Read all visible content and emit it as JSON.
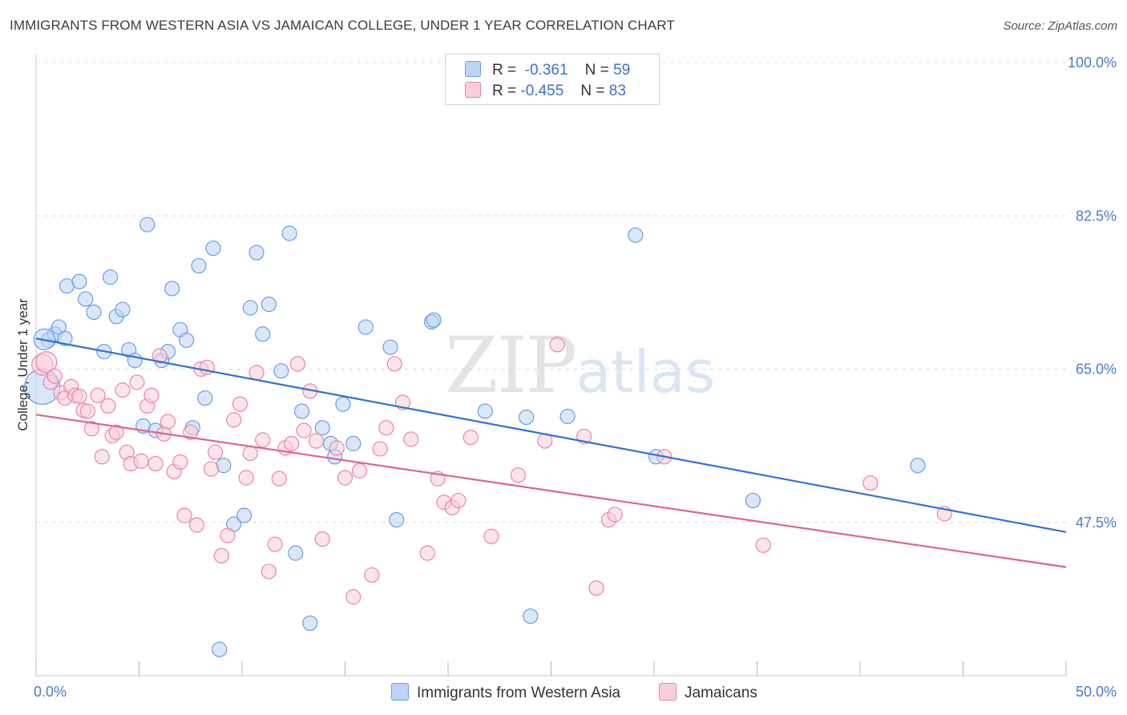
{
  "header": {
    "title": "IMMIGRANTS FROM WESTERN ASIA VS JAMAICAN COLLEGE, UNDER 1 YEAR CORRELATION CHART",
    "source": "Source: ZipAtlas.com"
  },
  "watermark": {
    "zip": "ZIP",
    "atlas": "atlas"
  },
  "legend": {
    "rows": [
      {
        "r_label": "R =",
        "r_value": "-0.361",
        "n_label": "N =",
        "n_value": "59",
        "color": "#a9c6f0",
        "border": "#6b9ee0"
      },
      {
        "r_label": "R =",
        "r_value": "-0.455",
        "n_label": "N =",
        "n_value": "83",
        "color": "#f7bfd1",
        "border": "#e886a6"
      }
    ]
  },
  "bottom_legend": {
    "items": [
      {
        "label": "Immigrants from Western Asia",
        "color": "#bcd4f5",
        "border": "#6b9ee0"
      },
      {
        "label": "Jamaicans",
        "color": "#f9cddd",
        "border": "#e886a6"
      }
    ]
  },
  "chart_data": {
    "type": "scatter",
    "title": "IMMIGRANTS FROM WESTERN ASIA VS JAMAICAN COLLEGE, UNDER 1 YEAR CORRELATION CHART",
    "xlabel": "",
    "ylabel": "College, Under 1 year",
    "xlim": [
      0,
      50
    ],
    "ylim": [
      30,
      100
    ],
    "x_tick_labels": [
      "0.0%",
      "50.0%"
    ],
    "y_ticks": [
      47.5,
      65.0,
      82.5,
      100.0
    ],
    "y_tick_labels": [
      "47.5%",
      "65.0%",
      "82.5%",
      "100.0%"
    ],
    "grid": true,
    "series": [
      {
        "name": "Immigrants from Western Asia",
        "color": "#6b9ee0",
        "fill": "#bcd4f5",
        "trend": {
          "x": [
            0,
            50
          ],
          "y": [
            68.5,
            46.4
          ],
          "color": "#2f72d6"
        },
        "points": [
          [
            0.3,
            63.0
          ],
          [
            0.6,
            68.3
          ],
          [
            0.9,
            69.0
          ],
          [
            1.1,
            69.8
          ],
          [
            1.4,
            68.5
          ],
          [
            1.5,
            74.5
          ],
          [
            2.1,
            75.0
          ],
          [
            2.4,
            73.0
          ],
          [
            2.8,
            71.5
          ],
          [
            3.3,
            67.0
          ],
          [
            3.6,
            75.5
          ],
          [
            3.9,
            71.0
          ],
          [
            4.2,
            71.8
          ],
          [
            4.5,
            67.2
          ],
          [
            4.8,
            66.0
          ],
          [
            5.2,
            58.5
          ],
          [
            5.4,
            81.5
          ],
          [
            5.8,
            58.0
          ],
          [
            6.1,
            66.0
          ],
          [
            6.4,
            67.0
          ],
          [
            6.6,
            74.2
          ],
          [
            7.0,
            69.5
          ],
          [
            7.3,
            68.3
          ],
          [
            7.6,
            58.3
          ],
          [
            7.9,
            76.8
          ],
          [
            8.2,
            61.7
          ],
          [
            8.6,
            78.8
          ],
          [
            8.9,
            33.0
          ],
          [
            9.1,
            54.0
          ],
          [
            9.6,
            47.3
          ],
          [
            10.1,
            48.3
          ],
          [
            10.4,
            72.0
          ],
          [
            10.7,
            78.3
          ],
          [
            11.0,
            69.0
          ],
          [
            11.3,
            72.4
          ],
          [
            11.9,
            64.8
          ],
          [
            12.3,
            80.5
          ],
          [
            12.6,
            44.0
          ],
          [
            12.9,
            60.2
          ],
          [
            13.3,
            36.0
          ],
          [
            13.9,
            58.3
          ],
          [
            14.3,
            56.5
          ],
          [
            14.5,
            55.0
          ],
          [
            14.9,
            61.0
          ],
          [
            15.4,
            56.5
          ],
          [
            16.0,
            69.8
          ],
          [
            17.2,
            67.5
          ],
          [
            17.5,
            47.8
          ],
          [
            19.2,
            70.4
          ],
          [
            19.3,
            70.6
          ],
          [
            21.8,
            60.2
          ],
          [
            23.8,
            59.5
          ],
          [
            24.0,
            36.8
          ],
          [
            25.8,
            59.6
          ],
          [
            29.1,
            80.3
          ],
          [
            30.1,
            55.0
          ],
          [
            34.8,
            50.0
          ],
          [
            42.8,
            54.0
          ],
          [
            0.4,
            68.4
          ]
        ]
      },
      {
        "name": "Jamaicans",
        "color": "#e886a6",
        "fill": "#f9cddd",
        "trend": {
          "x": [
            0,
            50
          ],
          "y": [
            59.8,
            42.4
          ],
          "color": "#e0648f"
        },
        "points": [
          [
            0.3,
            65.5
          ],
          [
            0.5,
            65.8
          ],
          [
            0.7,
            63.5
          ],
          [
            0.9,
            64.2
          ],
          [
            1.2,
            62.3
          ],
          [
            1.4,
            61.7
          ],
          [
            1.7,
            63.0
          ],
          [
            1.9,
            62.0
          ],
          [
            2.1,
            61.9
          ],
          [
            2.3,
            60.3
          ],
          [
            2.5,
            60.2
          ],
          [
            2.7,
            58.2
          ],
          [
            3.0,
            62.0
          ],
          [
            3.2,
            55.0
          ],
          [
            3.5,
            60.8
          ],
          [
            3.7,
            57.4
          ],
          [
            3.9,
            57.8
          ],
          [
            4.2,
            62.6
          ],
          [
            4.4,
            55.5
          ],
          [
            4.6,
            54.2
          ],
          [
            4.9,
            63.5
          ],
          [
            5.1,
            54.5
          ],
          [
            5.4,
            60.8
          ],
          [
            5.6,
            62.0
          ],
          [
            5.8,
            54.2
          ],
          [
            6.0,
            66.5
          ],
          [
            6.2,
            57.6
          ],
          [
            6.4,
            59.0
          ],
          [
            6.7,
            53.3
          ],
          [
            7.0,
            54.4
          ],
          [
            7.2,
            48.3
          ],
          [
            7.5,
            57.8
          ],
          [
            7.8,
            47.2
          ],
          [
            8.0,
            65.0
          ],
          [
            8.3,
            65.2
          ],
          [
            8.5,
            53.6
          ],
          [
            8.7,
            55.5
          ],
          [
            9.0,
            43.7
          ],
          [
            9.3,
            46.0
          ],
          [
            9.6,
            59.2
          ],
          [
            9.9,
            61.0
          ],
          [
            10.2,
            52.6
          ],
          [
            10.4,
            55.4
          ],
          [
            10.7,
            64.6
          ],
          [
            11.0,
            56.9
          ],
          [
            11.3,
            41.9
          ],
          [
            11.6,
            45.0
          ],
          [
            11.8,
            52.5
          ],
          [
            12.1,
            56.0
          ],
          [
            12.4,
            56.5
          ],
          [
            12.7,
            65.6
          ],
          [
            13.0,
            58.0
          ],
          [
            13.3,
            62.5
          ],
          [
            13.6,
            56.8
          ],
          [
            13.9,
            45.6
          ],
          [
            14.6,
            56.0
          ],
          [
            15.0,
            52.6
          ],
          [
            15.4,
            39.0
          ],
          [
            15.7,
            53.4
          ],
          [
            16.3,
            41.5
          ],
          [
            16.7,
            55.9
          ],
          [
            17.0,
            58.3
          ],
          [
            17.4,
            65.6
          ],
          [
            17.8,
            61.2
          ],
          [
            18.2,
            57.0
          ],
          [
            19.0,
            44.0
          ],
          [
            19.5,
            52.5
          ],
          [
            19.8,
            49.8
          ],
          [
            20.2,
            49.2
          ],
          [
            20.5,
            50.0
          ],
          [
            21.1,
            57.2
          ],
          [
            22.1,
            45.9
          ],
          [
            23.4,
            52.9
          ],
          [
            24.7,
            56.8
          ],
          [
            25.3,
            67.8
          ],
          [
            26.6,
            57.3
          ],
          [
            27.2,
            40.0
          ],
          [
            27.8,
            47.8
          ],
          [
            28.1,
            48.4
          ],
          [
            30.5,
            55.0
          ],
          [
            35.3,
            44.9
          ],
          [
            40.5,
            52.0
          ],
          [
            44.1,
            48.5
          ]
        ]
      }
    ]
  }
}
